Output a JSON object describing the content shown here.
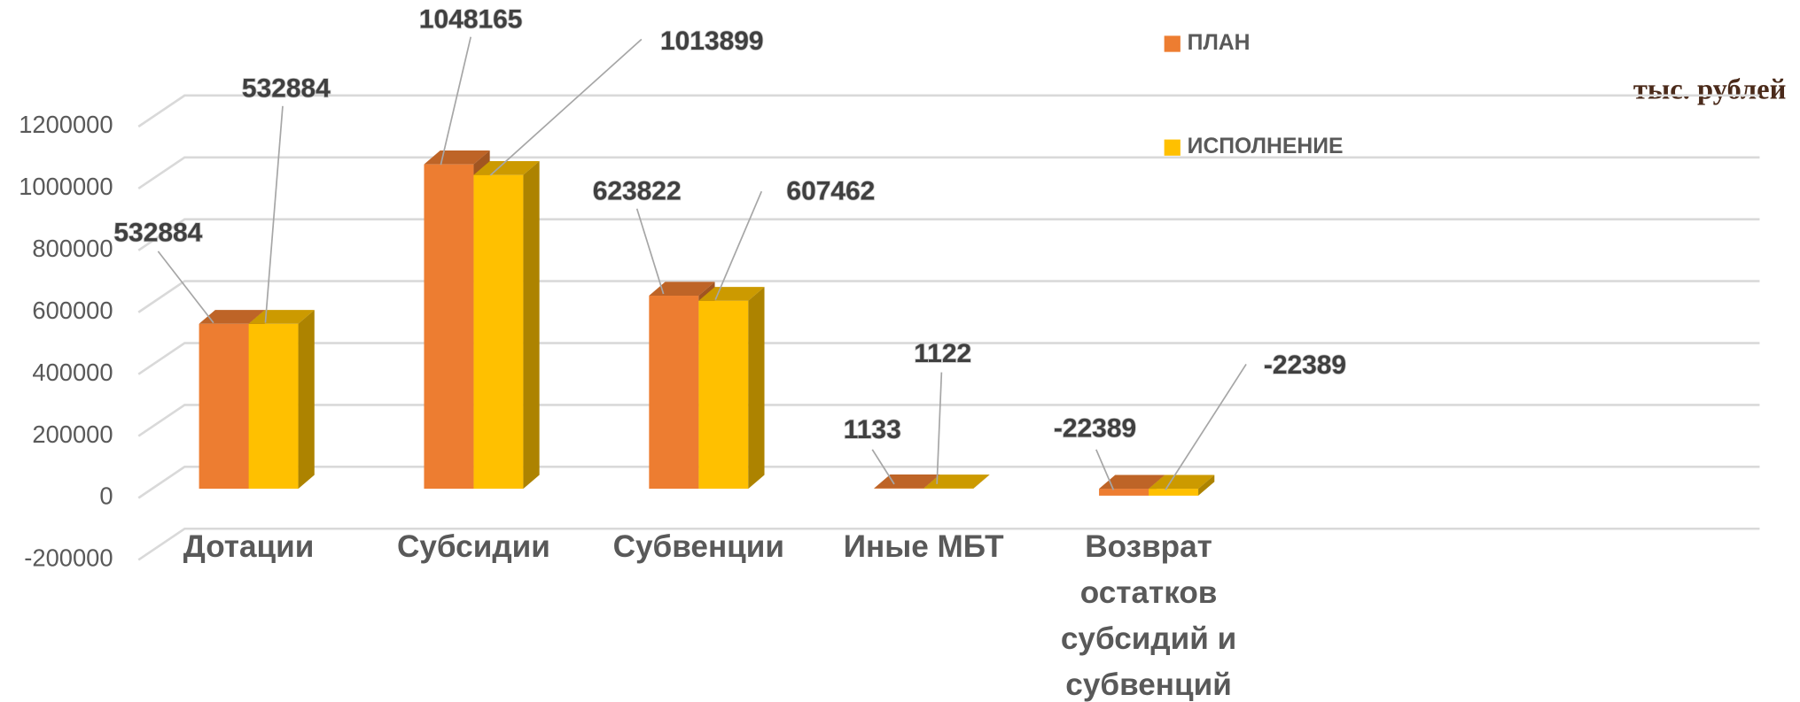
{
  "chart_data": {
    "type": "bar3d",
    "unit_label": "тыс. рублей",
    "categories": [
      "Дотации",
      "Субсидии",
      "Субвенции",
      "Иные МБТ",
      "Возврат остатков субсидий и субвенций"
    ],
    "series": [
      {
        "name": "ПЛАН",
        "color": "#ED7D31",
        "values": [
          532884,
          1048165,
          623822,
          1133,
          -22389
        ]
      },
      {
        "name": "ИСПОЛНЕНИЕ",
        "color": "#FFC000",
        "values": [
          532884,
          1013899,
          607462,
          1122,
          -22389
        ]
      }
    ],
    "ylim": [
      -200000,
      1200000
    ],
    "yticks": [
      -200000,
      0,
      200000,
      400000,
      600000,
      800000,
      1000000,
      1200000
    ],
    "grid": true
  }
}
